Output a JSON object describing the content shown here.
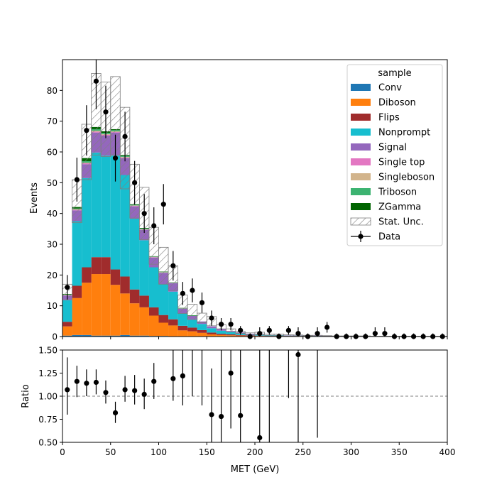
{
  "chart_data": [
    {
      "type": "bar",
      "subtype": "stacked-histogram-with-data-points",
      "xlabel": "",
      "ylabel": "Events",
      "xlim": [
        0,
        400
      ],
      "ylim": [
        0,
        90
      ],
      "yticks": [
        0,
        10,
        20,
        30,
        40,
        50,
        60,
        70,
        80
      ],
      "bin_edges": [
        0,
        10,
        20,
        30,
        40,
        50,
        60,
        70,
        80,
        90,
        100,
        110,
        120,
        130,
        140,
        150,
        160,
        170,
        180,
        190,
        200,
        210,
        220,
        230,
        240,
        250,
        260,
        270,
        280,
        290,
        300,
        310,
        320,
        330,
        340,
        350,
        360,
        370,
        380,
        390,
        400
      ],
      "legend": {
        "title": "sample",
        "placement": "top-right",
        "entries": [
          "Conv",
          "Diboson",
          "Flips",
          "Nonprompt",
          "Signal",
          "Single top",
          "Singleboson",
          "Triboson",
          "ZGamma",
          "Stat. Unc.",
          "Data"
        ]
      },
      "series": [
        {
          "name": "Conv",
          "color": "#1f77b4",
          "values": [
            0.3,
            0.5,
            0.5,
            0.3,
            0.3,
            0.3,
            0.5,
            0.3,
            0.3,
            0.2,
            0.2,
            0.1,
            0.1,
            0.1,
            0.1,
            0,
            0,
            0,
            0,
            0,
            0,
            0,
            0,
            0,
            0,
            0,
            0,
            0,
            0,
            0,
            0,
            0,
            0,
            0,
            0,
            0,
            0,
            0,
            0,
            0
          ]
        },
        {
          "name": "Diboson",
          "color": "#ff7f0e",
          "values": [
            3,
            12,
            17,
            20,
            20,
            16.5,
            13.5,
            10.5,
            9.2,
            6.6,
            4.3,
            3.5,
            1.9,
            1.6,
            1.1,
            0.7,
            0.5,
            0.4,
            0.3,
            0.2,
            0.2,
            0.1,
            0.1,
            0.1,
            0.1,
            0.1,
            0.1,
            0,
            0,
            0,
            0,
            0,
            0,
            0,
            0,
            0,
            0,
            0,
            0,
            0
          ]
        },
        {
          "name": "Flips",
          "color": "#a02c2c",
          "values": [
            1.5,
            4,
            5,
            5.5,
            5.5,
            5,
            5.5,
            4.5,
            3.8,
            2.7,
            2.5,
            2,
            1.5,
            1.2,
            0.9,
            0.6,
            0.4,
            0.3,
            0.2,
            0.2,
            0.1,
            0.1,
            0.1,
            0.1,
            0.1,
            0.1,
            0,
            0,
            0,
            0,
            0,
            0,
            0,
            0,
            0,
            0,
            0,
            0,
            0,
            0
          ]
        },
        {
          "name": "Nonprompt",
          "color": "#17becf",
          "values": [
            7,
            21,
            29,
            34,
            33,
            37,
            33,
            23,
            18,
            13,
            10,
            9,
            4,
            2.7,
            2,
            1.4,
            1,
            0.8,
            0.5,
            0.3,
            0.3,
            0.2,
            0.2,
            0.1,
            0.1,
            0.1,
            0.1,
            0.1,
            0,
            0,
            0,
            0,
            0,
            0,
            0,
            0,
            0,
            0,
            0,
            0
          ]
        },
        {
          "name": "Signal",
          "color": "#9467bd",
          "values": [
            1.5,
            3.5,
            4.5,
            6.5,
            6.5,
            7.5,
            5.5,
            4,
            3.4,
            3.2,
            3.7,
            2.7,
            1.5,
            1.1,
            0.8,
            0.6,
            0.5,
            0.3,
            0.3,
            0.2,
            0.2,
            0.1,
            0.1,
            0.1,
            0.1,
            0.1,
            0.1,
            0.1,
            0.1,
            0,
            0,
            0,
            0,
            0,
            0,
            0,
            0,
            0,
            0,
            0
          ]
        },
        {
          "name": "Single top",
          "color": "#e377c2",
          "values": [
            0.1,
            0.2,
            0.3,
            0.3,
            0.3,
            0.2,
            0.2,
            0.2,
            0.1,
            0.1,
            0.1,
            0.1,
            0.1,
            0,
            0,
            0,
            0,
            0,
            0,
            0,
            0,
            0,
            0,
            0,
            0,
            0,
            0,
            0,
            0,
            0,
            0,
            0,
            0,
            0,
            0,
            0,
            0,
            0,
            0,
            0
          ]
        },
        {
          "name": "Singleboson",
          "color": "#d2b48c",
          "values": [
            0.1,
            0.2,
            0.2,
            0.3,
            0.2,
            0.2,
            0.2,
            0.1,
            0.1,
            0.1,
            0.1,
            0,
            0,
            0,
            0,
            0,
            0,
            0,
            0,
            0,
            0,
            0,
            0,
            0,
            0,
            0,
            0,
            0,
            0,
            0,
            0,
            0,
            0,
            0,
            0,
            0,
            0,
            0,
            0,
            0
          ]
        },
        {
          "name": "Triboson",
          "color": "#3cb371",
          "values": [
            0.1,
            0.2,
            0.5,
            0.5,
            0.4,
            0.4,
            0.3,
            0.2,
            0.2,
            0.1,
            0.1,
            0.1,
            0.1,
            0.1,
            0,
            0,
            0,
            0,
            0,
            0,
            0,
            0,
            0,
            0,
            0,
            0,
            0,
            0,
            0,
            0,
            0,
            0,
            0,
            0,
            0,
            0,
            0,
            0,
            0,
            0
          ]
        },
        {
          "name": "ZGamma",
          "color": "#006400",
          "values": [
            0.2,
            0.5,
            1,
            0.7,
            0.5,
            0.3,
            0.3,
            0.2,
            0.2,
            0.1,
            0.1,
            0.1,
            0.1,
            0.1,
            0,
            0,
            0,
            0,
            0,
            0,
            0,
            0,
            0,
            0,
            0,
            0,
            0,
            0,
            0,
            0,
            0,
            0,
            0,
            0,
            0,
            0,
            0,
            0,
            0,
            0
          ]
        }
      ],
      "stat_unc_up": [
        17,
        51,
        69,
        85.5,
        82.7,
        84.5,
        74.5,
        56,
        48.5,
        35.5,
        29,
        23,
        13.5,
        10.5,
        7.6,
        6.5,
        3.8,
        2.5,
        1.6,
        1.2,
        1.4,
        0.8,
        0.8,
        0.6,
        0.5,
        0.4,
        0.4,
        0.3,
        0.2,
        0.2,
        0.2,
        0.2,
        0.1,
        0.1,
        0.1,
        0.1,
        0.1,
        0.1,
        0.1,
        0.1
      ],
      "stat_unc_down": [
        12,
        37,
        51,
        59,
        58.5,
        59,
        48,
        38.5,
        31.5,
        23.5,
        17,
        15,
        7.5,
        5.5,
        4.5,
        3.5,
        2.5,
        1.5,
        1,
        0.6,
        0.6,
        0.4,
        0.4,
        0.2,
        0.2,
        0.2,
        0.1,
        0.1,
        0,
        0,
        0,
        0,
        0,
        0,
        0,
        0,
        0,
        0,
        0,
        0
      ],
      "data": {
        "name": "Data",
        "x": [
          5,
          15,
          25,
          35,
          45,
          55,
          65,
          75,
          85,
          95,
          105,
          115,
          125,
          135,
          145,
          155,
          165,
          175,
          185,
          195,
          205,
          215,
          225,
          235,
          245,
          255,
          265,
          275,
          285,
          295,
          305,
          315,
          325,
          335,
          345,
          355,
          365,
          375,
          385,
          395
        ],
        "y": [
          16,
          51,
          67,
          83,
          73,
          58,
          65,
          50,
          40,
          36,
          43,
          23,
          14,
          15,
          11,
          6,
          4,
          4,
          2,
          0,
          1,
          2,
          0,
          2,
          1,
          0,
          1,
          3,
          0,
          0,
          0,
          0,
          1,
          1,
          0,
          0,
          0,
          0,
          0,
          0
        ]
      }
    },
    {
      "type": "scatter",
      "subtype": "ratio-panel",
      "xlabel": "MET (GeV)",
      "ylabel": "Ratio",
      "xlim": [
        0,
        400
      ],
      "ylim": [
        0.5,
        1.5
      ],
      "xticks": [
        0,
        50,
        100,
        150,
        200,
        250,
        300,
        350,
        400
      ],
      "yticks": [
        0.5,
        0.75,
        1.0,
        1.25,
        1.5
      ],
      "ytick_labels": [
        "0.50",
        "0.75",
        "1.00",
        "1.25",
        "1.50"
      ],
      "reference_line": 1.0,
      "points": [
        {
          "x": 5,
          "y": 1.07,
          "lo": 0.8,
          "hi": 1.42
        },
        {
          "x": 15,
          "y": 1.16,
          "lo": 0.99,
          "hi": 1.33
        },
        {
          "x": 25,
          "y": 1.14,
          "lo": 1.0,
          "hi": 1.29
        },
        {
          "x": 35,
          "y": 1.15,
          "lo": 1.02,
          "hi": 1.29
        },
        {
          "x": 45,
          "y": 1.04,
          "lo": 0.92,
          "hi": 1.17
        },
        {
          "x": 55,
          "y": 0.82,
          "lo": 0.71,
          "hi": 0.94
        },
        {
          "x": 65,
          "y": 1.07,
          "lo": 0.94,
          "hi": 1.22
        },
        {
          "x": 75,
          "y": 1.06,
          "lo": 0.91,
          "hi": 1.23
        },
        {
          "x": 85,
          "y": 1.02,
          "lo": 0.86,
          "hi": 1.19
        },
        {
          "x": 95,
          "y": 1.16,
          "lo": 0.97,
          "hi": 1.36
        },
        {
          "x": 115,
          "y": 1.19,
          "lo": 0.95,
          "hi": 1.5
        },
        {
          "x": 125,
          "y": 1.22,
          "lo": 0.9,
          "hi": 1.5
        },
        {
          "x": 135,
          "y": null,
          "lo": 1.0,
          "hi": 1.5
        },
        {
          "x": 145,
          "y": null,
          "lo": 0.9,
          "hi": 1.5
        },
        {
          "x": 155,
          "y": 0.8,
          "lo": 0.5,
          "hi": 1.3
        },
        {
          "x": 165,
          "y": 0.78,
          "lo": 0.5,
          "hi": 1.5
        },
        {
          "x": 175,
          "y": 1.25,
          "lo": 0.65,
          "hi": 1.5
        },
        {
          "x": 185,
          "y": 0.79,
          "lo": 0.5,
          "hi": 1.5
        },
        {
          "x": 205,
          "y": 0.55,
          "lo": 0.5,
          "hi": 1.5
        },
        {
          "x": 215,
          "y": null,
          "lo": 0.5,
          "hi": 1.5
        },
        {
          "x": 235,
          "y": null,
          "lo": 0.98,
          "hi": 1.5
        },
        {
          "x": 245,
          "y": 1.45,
          "lo": 0.5,
          "hi": 1.5
        },
        {
          "x": 265,
          "y": null,
          "lo": 0.55,
          "hi": 1.5
        }
      ]
    }
  ]
}
